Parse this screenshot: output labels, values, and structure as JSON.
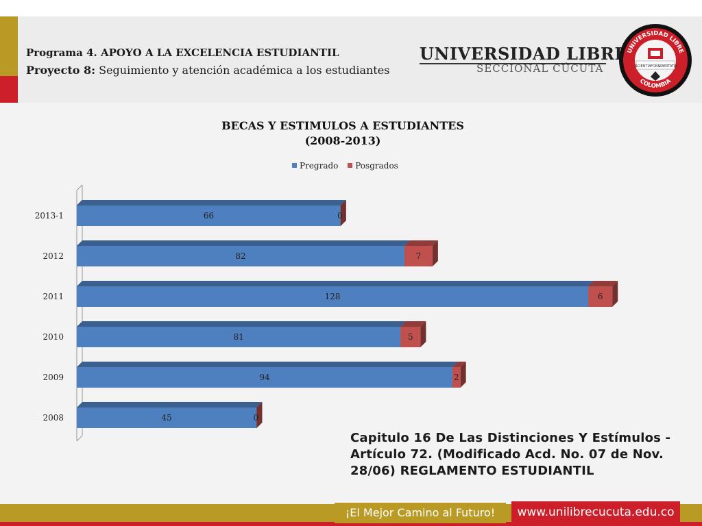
{
  "header": {
    "program": "Programa 4. APOYO A LA EXCELENCIA ESTUDIANTIL",
    "project_label": "Proyecto 8:",
    "project_text": " Seguimiento y atención académica a los estudiantes",
    "university_name": "UNIVERSIDAD LIBRE",
    "university_sub": "SECCIONAL CÚCUTA",
    "seal_text_top": "UNIVERSIDAD LIBRE",
    "seal_text_bottom": "COLOMBIA",
    "seal_band_left": "SCIENTIA",
    "seal_band_mid": "FONS",
    "seal_band_right": "LIBERTATIS"
  },
  "colors": {
    "gold": "#b89a24",
    "red": "#cc1f2a",
    "pregrado": "#4e7fbe",
    "posgrados": "#c0504d"
  },
  "chart_data": {
    "type": "bar",
    "orientation": "horizontal",
    "stacked": true,
    "title_line1": "BECAS Y ESTIMULOS A ESTUDIANTES",
    "title_line2": "(2008-2013)",
    "categories": [
      "2013-1",
      "2012",
      "2011",
      "2010",
      "2009",
      "2008"
    ],
    "series": [
      {
        "name": "Pregrado",
        "values": [
          66,
          82,
          128,
          81,
          94,
          45
        ],
        "color": "#4e7fbe"
      },
      {
        "name": "Posgrados",
        "values": [
          0,
          7,
          6,
          5,
          2,
          0
        ],
        "color": "#c0504d"
      }
    ],
    "legend": "top-center",
    "xlim": [
      0,
      140
    ],
    "grid": false
  },
  "caption": "Capitulo 16 De Las Distinciones Y Estímulos - Artículo 72. (Modificado Acd. No. 07 de Nov. 28/06) REGLAMENTO ESTUDIANTIL",
  "footer": {
    "slogan": "¡El Mejor Camino al Futuro!",
    "website": "www.unilibrecucuta.edu.co"
  }
}
